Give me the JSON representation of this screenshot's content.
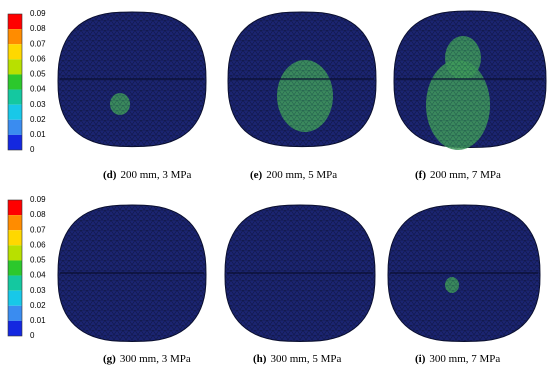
{
  "colorbars": [
    {
      "ticks": [
        0.09,
        0.08,
        0.07,
        0.06,
        0.05,
        0.04,
        0.03,
        0.02,
        0.01,
        0
      ]
    },
    {
      "ticks": [
        0.09,
        0.08,
        0.07,
        0.06,
        0.05,
        0.04,
        0.03,
        0.02,
        0.01,
        0
      ]
    }
  ],
  "panels": [
    {
      "letter": "(d)",
      "caption": "200 mm, 3 MPa"
    },
    {
      "letter": "(e)",
      "caption": "200 mm, 5 MPa"
    },
    {
      "letter": "(f)",
      "caption": "200 mm, 7 MPa"
    },
    {
      "letter": "(g)",
      "caption": "300 mm, 3 MPa"
    },
    {
      "letter": "(h)",
      "caption": "300 mm, 5 MPa"
    },
    {
      "letter": "(i)",
      "caption": "300 mm, 7 MPa"
    }
  ]
}
